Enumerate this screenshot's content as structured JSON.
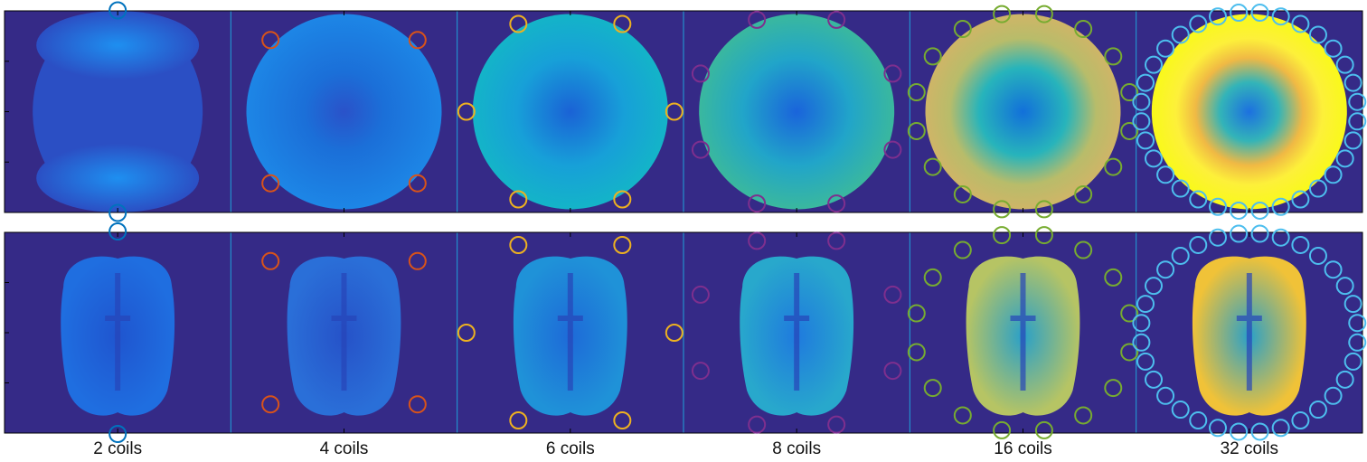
{
  "figure": {
    "background_color": "#352A87",
    "border_color": "#000000",
    "rows": [
      {
        "name": "sensitivity-sum-map"
      },
      {
        "name": "brain-image"
      }
    ],
    "panels": [
      {
        "label": "2 coils",
        "coil_count": 2,
        "coil_color": "#0072BD"
      },
      {
        "label": "4 coils",
        "coil_count": 4,
        "coil_color": "#D95319"
      },
      {
        "label": "6 coils",
        "coil_count": 6,
        "coil_color": "#EDB120"
      },
      {
        "label": "8 coils",
        "coil_count": 8,
        "coil_color": "#7E2F8E"
      },
      {
        "label": "16 coils",
        "coil_count": 16,
        "coil_color": "#77AC30"
      },
      {
        "label": "32 coils",
        "coil_count": 32,
        "coil_color": "#4DBEEE"
      }
    ]
  }
}
